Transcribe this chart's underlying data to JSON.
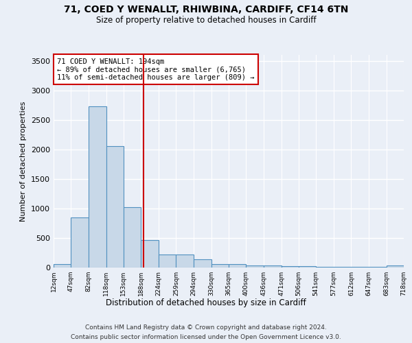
{
  "title_line1": "71, COED Y WENALLT, RHIWBINA, CARDIFF, CF14 6TN",
  "title_line2": "Size of property relative to detached houses in Cardiff",
  "xlabel": "Distribution of detached houses by size in Cardiff",
  "ylabel": "Number of detached properties",
  "footnote1": "Contains HM Land Registry data © Crown copyright and database right 2024.",
  "footnote2": "Contains public sector information licensed under the Open Government Licence v3.0.",
  "annotation_title": "71 COED Y WENALLT: 194sqm",
  "annotation_line1": "← 89% of detached houses are smaller (6,765)",
  "annotation_line2": "11% of semi-detached houses are larger (809) →",
  "property_size": 194,
  "bin_edges": [
    12,
    47,
    82,
    118,
    153,
    188,
    224,
    259,
    294,
    330,
    365,
    400,
    436,
    471,
    506,
    541,
    577,
    612,
    647,
    683,
    718
  ],
  "bar_heights": [
    60,
    850,
    2730,
    2055,
    1020,
    460,
    220,
    215,
    145,
    60,
    55,
    40,
    35,
    25,
    20,
    15,
    10,
    10,
    8,
    30
  ],
  "bar_color": "#c8d8e8",
  "bar_edge_color": "#5090c0",
  "red_line_color": "#cc0000",
  "ylim": [
    0,
    3600
  ],
  "yticks": [
    0,
    500,
    1000,
    1500,
    2000,
    2500,
    3000,
    3500
  ],
  "bg_color": "#eaeff7",
  "grid_color": "#ffffff",
  "annotation_box_color": "#ffffff",
  "annotation_box_edge": "#cc0000"
}
